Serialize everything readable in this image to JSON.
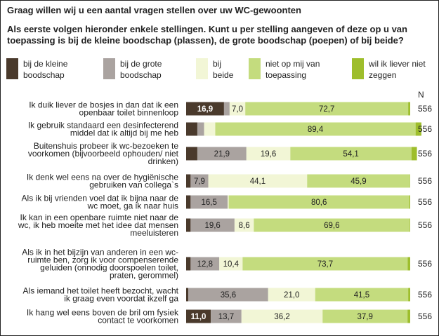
{
  "title": "Graag willen wij u een aantal vragen stellen over uw WC-gewoonten",
  "subtitle": "Als eerste volgen hieronder enkele stellingen. Kunt u per stelling aangeven of deze op u van toepassing is bij de kleine boodschap (plassen), de grote boodschap (poepen) of bij beide?",
  "n_header": "N",
  "colors": [
    "#4a3a2c",
    "#aaa3a0",
    "#f2f6d6",
    "#c4dc7e",
    "#9ebe2c"
  ],
  "chart_data": {
    "type": "bar",
    "orientation": "horizontal",
    "stacked": true,
    "percent": true,
    "series": [
      {
        "name": "bij de kleine boodschap",
        "values": [
          16.9,
          5.0,
          5.0,
          2.0,
          2.0,
          2.0,
          2.0,
          1.0,
          11.0
        ]
      },
      {
        "name": "bij de grote boodschap",
        "values": [
          2.5,
          3.0,
          21.9,
          7.9,
          16.5,
          19.6,
          12.8,
          35.6,
          13.7
        ]
      },
      {
        "name": "bij beide",
        "values": [
          7.0,
          5.0,
          19.6,
          44.1,
          0.5,
          8.6,
          10.4,
          21.0,
          36.2
        ]
      },
      {
        "name": "niet op mij van toepassing",
        "values": [
          72.7,
          89.4,
          54.1,
          45.9,
          80.6,
          69.6,
          73.7,
          41.5,
          37.9
        ]
      },
      {
        "name": "wil ik liever niet zeggen",
        "values": [
          0.9,
          2.6,
          2.4,
          0.1,
          0.4,
          0.2,
          1.1,
          0.9,
          1.2
        ]
      }
    ],
    "labels": [
      [
        "16,9",
        "",
        "7,0",
        "72,7",
        ""
      ],
      [
        "",
        "",
        "",
        "89,4",
        ""
      ],
      [
        "",
        "21,9",
        "19,6",
        "54,1",
        ""
      ],
      [
        "",
        "7,9",
        "44,1",
        "45,9",
        ""
      ],
      [
        "",
        "16,5",
        "",
        "80,6",
        ""
      ],
      [
        "",
        "19,6",
        "8,6",
        "69,6",
        ""
      ],
      [
        "",
        "12,8",
        "10,4",
        "73,7",
        ""
      ],
      [
        "",
        "35,6",
        "21,0",
        "41,5",
        ""
      ],
      [
        "11,0",
        "13,7",
        "36,2",
        "37,9",
        ""
      ]
    ],
    "categories": [
      [
        "Ik duik liever de bosjes in dan dat ik een",
        "openbaar toilet binnenloop"
      ],
      [
        "Ik gebruik standaard een desinfecterend",
        "middel dat ik altijd bij me heb"
      ],
      [
        "Buitenshuis probeer ik wc-bezoeken te",
        "voorkomen (bijvoorbeeld ophouden/ niet",
        "drinken)"
      ],
      [
        "Ik denk wel eens na over de hygiënische",
        "gebruiken van collega`s"
      ],
      [
        "Als ik bij vrienden voel dat ik bijna naar de",
        "wc moet, ga ik naar huis"
      ],
      [
        "Ik kan in een openbare ruimte niet naar de",
        "wc, ik heb moeite met het idee dat mensen",
        "meeluisteren"
      ],
      [
        "Als ik in het bijzijn van anderen in een wc-",
        "ruimte ben, zorg ik voor compenserende",
        "geluiden (onnodig doorspoelen toilet,",
        "praten, gerommel)"
      ],
      [
        "Als iemand het toilet heeft bezocht, wacht",
        "ik graag even voordat ikzelf ga"
      ],
      [
        "Ik hang wel eens boven de bril om fysiek",
        "contact te voorkomen"
      ]
    ],
    "n": [
      "556",
      "556",
      "556",
      "556",
      "556",
      "556",
      "556",
      "556",
      "556"
    ],
    "xlim": [
      0,
      100
    ]
  }
}
